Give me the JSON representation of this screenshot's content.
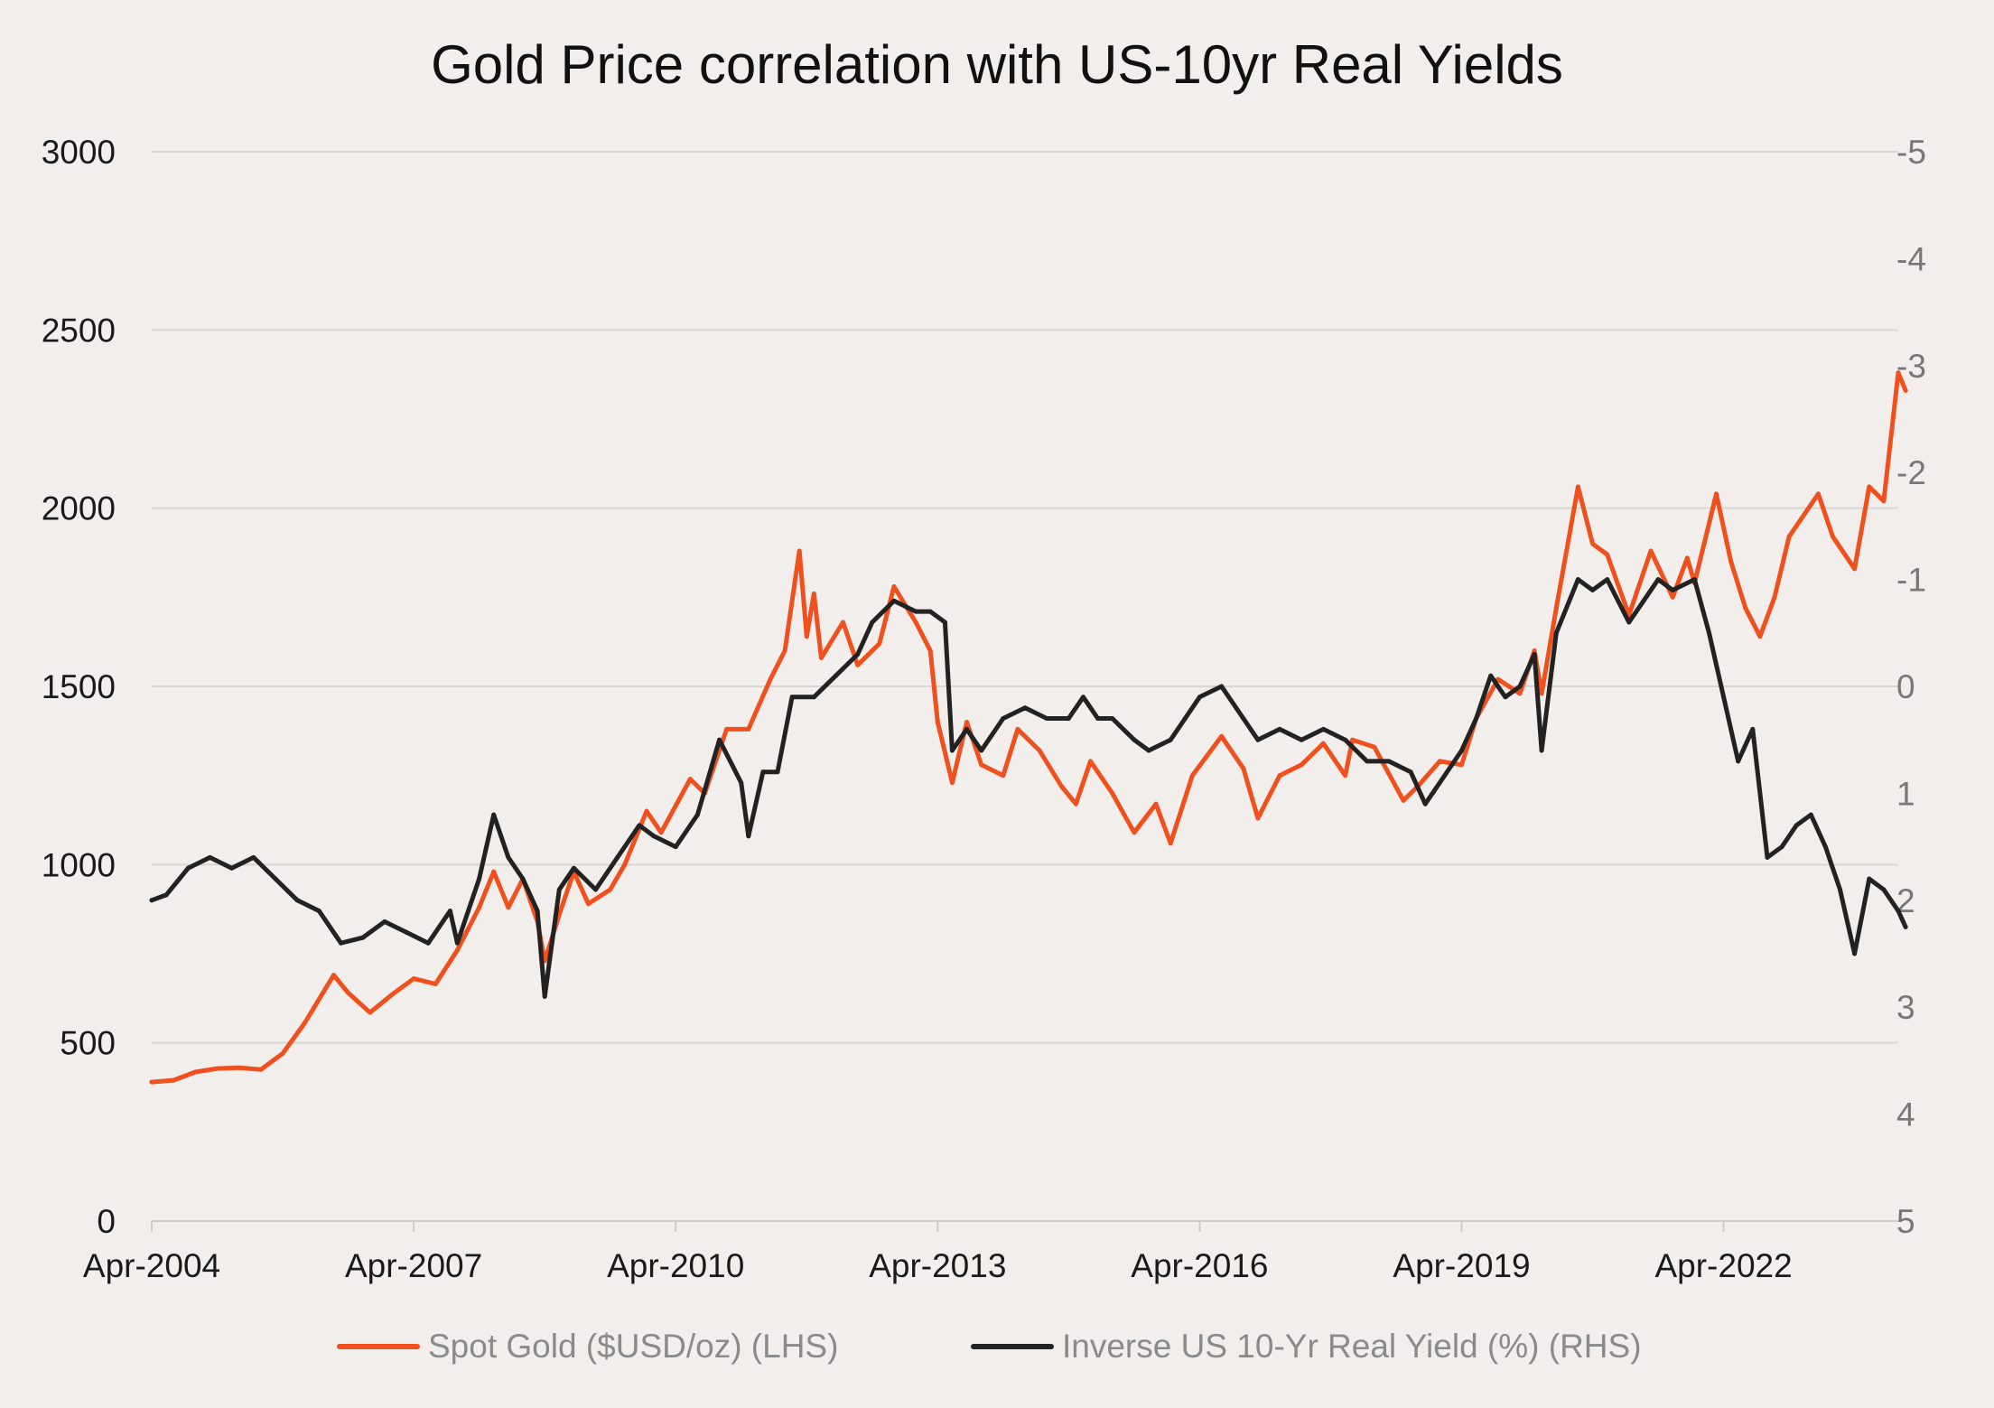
{
  "chart_data": {
    "type": "line",
    "title": "Gold Price correlation with US-10yr Real Yields",
    "xlabel": "",
    "ylabel_left": "",
    "ylabel_right": "",
    "x_range": [
      "2004-04",
      "2024-04"
    ],
    "x_ticks": [
      "Apr-2004",
      "Apr-2007",
      "Apr-2010",
      "Apr-2013",
      "Apr-2016",
      "Apr-2019",
      "Apr-2022"
    ],
    "y_left": {
      "range": [
        0,
        3000
      ],
      "ticks": [
        "0",
        "500",
        "1000",
        "1500",
        "2000",
        "2500",
        "3000"
      ]
    },
    "y_right": {
      "range": [
        5,
        -5
      ],
      "ticks": [
        "5",
        "4",
        "3",
        "2",
        "1",
        "0",
        "-1",
        "-2",
        "-3",
        "-4",
        "-5"
      ],
      "inverted": true
    },
    "grid": true,
    "legend_position": "bottom",
    "series": [
      {
        "name": "Spot Gold ($USD/oz) (LHS)",
        "axis": "left",
        "color": "#f0501e",
        "points": [
          [
            "2004-04",
            390
          ],
          [
            "2004-07",
            395
          ],
          [
            "2004-10",
            418
          ],
          [
            "2005-01",
            428
          ],
          [
            "2005-04",
            430
          ],
          [
            "2005-07",
            425
          ],
          [
            "2005-10",
            470
          ],
          [
            "2006-01",
            555
          ],
          [
            "2006-05",
            690
          ],
          [
            "2006-07",
            640
          ],
          [
            "2006-10",
            585
          ],
          [
            "2007-01",
            635
          ],
          [
            "2007-04",
            680
          ],
          [
            "2007-07",
            665
          ],
          [
            "2007-10",
            760
          ],
          [
            "2008-01",
            880
          ],
          [
            "2008-03",
            980
          ],
          [
            "2008-05",
            880
          ],
          [
            "2008-07",
            960
          ],
          [
            "2008-09",
            840
          ],
          [
            "2008-10",
            730
          ],
          [
            "2008-12",
            860
          ],
          [
            "2009-02",
            980
          ],
          [
            "2009-04",
            890
          ],
          [
            "2009-07",
            930
          ],
          [
            "2009-09",
            1000
          ],
          [
            "2009-12",
            1150
          ],
          [
            "2010-02",
            1090
          ],
          [
            "2010-06",
            1240
          ],
          [
            "2010-08",
            1200
          ],
          [
            "2010-11",
            1380
          ],
          [
            "2011-02",
            1380
          ],
          [
            "2011-05",
            1520
          ],
          [
            "2011-07",
            1600
          ],
          [
            "2011-09",
            1880
          ],
          [
            "2011-10",
            1640
          ],
          [
            "2011-11",
            1760
          ],
          [
            "2011-12",
            1580
          ],
          [
            "2012-03",
            1680
          ],
          [
            "2012-05",
            1560
          ],
          [
            "2012-08",
            1620
          ],
          [
            "2012-10",
            1780
          ],
          [
            "2013-01",
            1680
          ],
          [
            "2013-03",
            1600
          ],
          [
            "2013-04",
            1400
          ],
          [
            "2013-06",
            1230
          ],
          [
            "2013-08",
            1400
          ],
          [
            "2013-10",
            1280
          ],
          [
            "2014-01",
            1250
          ],
          [
            "2014-03",
            1380
          ],
          [
            "2014-06",
            1320
          ],
          [
            "2014-09",
            1220
          ],
          [
            "2014-11",
            1170
          ],
          [
            "2015-01",
            1290
          ],
          [
            "2015-04",
            1200
          ],
          [
            "2015-07",
            1090
          ],
          [
            "2015-10",
            1170
          ],
          [
            "2015-12",
            1060
          ],
          [
            "2016-03",
            1250
          ],
          [
            "2016-07",
            1360
          ],
          [
            "2016-10",
            1270
          ],
          [
            "2016-12",
            1130
          ],
          [
            "2017-03",
            1250
          ],
          [
            "2017-06",
            1280
          ],
          [
            "2017-09",
            1340
          ],
          [
            "2017-12",
            1250
          ],
          [
            "2018-01",
            1350
          ],
          [
            "2018-04",
            1330
          ],
          [
            "2018-08",
            1180
          ],
          [
            "2018-10",
            1220
          ],
          [
            "2019-01",
            1290
          ],
          [
            "2019-04",
            1280
          ],
          [
            "2019-06",
            1410
          ],
          [
            "2019-09",
            1520
          ],
          [
            "2019-12",
            1480
          ],
          [
            "2020-02",
            1600
          ],
          [
            "2020-03",
            1480
          ],
          [
            "2020-05",
            1720
          ],
          [
            "2020-08",
            2060
          ],
          [
            "2020-10",
            1900
          ],
          [
            "2020-12",
            1870
          ],
          [
            "2021-03",
            1700
          ],
          [
            "2021-06",
            1880
          ],
          [
            "2021-09",
            1750
          ],
          [
            "2021-11",
            1860
          ],
          [
            "2021-12",
            1790
          ],
          [
            "2022-03",
            2040
          ],
          [
            "2022-05",
            1850
          ],
          [
            "2022-07",
            1720
          ],
          [
            "2022-09",
            1640
          ],
          [
            "2022-11",
            1750
          ],
          [
            "2023-01",
            1920
          ],
          [
            "2023-05",
            2040
          ],
          [
            "2023-07",
            1920
          ],
          [
            "2023-10",
            1830
          ],
          [
            "2023-12",
            2060
          ],
          [
            "2024-02",
            2020
          ],
          [
            "2024-04",
            2380
          ],
          [
            "2024-05",
            2330
          ]
        ]
      },
      {
        "name": "Inverse US 10-Yr Real Yield (%) (RHS)",
        "axis": "right",
        "color": "#222222",
        "points": [
          [
            "2004-04",
            2.0
          ],
          [
            "2004-06",
            1.95
          ],
          [
            "2004-09",
            1.7
          ],
          [
            "2004-12",
            1.6
          ],
          [
            "2005-03",
            1.7
          ],
          [
            "2005-06",
            1.6
          ],
          [
            "2005-09",
            1.8
          ],
          [
            "2005-12",
            2.0
          ],
          [
            "2006-03",
            2.1
          ],
          [
            "2006-06",
            2.4
          ],
          [
            "2006-09",
            2.35
          ],
          [
            "2006-12",
            2.2
          ],
          [
            "2007-03",
            2.3
          ],
          [
            "2007-06",
            2.4
          ],
          [
            "2007-09",
            2.1
          ],
          [
            "2007-10",
            2.4
          ],
          [
            "2008-01",
            1.8
          ],
          [
            "2008-03",
            1.2
          ],
          [
            "2008-05",
            1.6
          ],
          [
            "2008-07",
            1.8
          ],
          [
            "2008-09",
            2.1
          ],
          [
            "2008-10",
            2.9
          ],
          [
            "2008-11",
            2.4
          ],
          [
            "2008-12",
            1.9
          ],
          [
            "2009-02",
            1.7
          ],
          [
            "2009-05",
            1.9
          ],
          [
            "2009-08",
            1.6
          ],
          [
            "2009-11",
            1.3
          ],
          [
            "2010-01",
            1.4
          ],
          [
            "2010-04",
            1.5
          ],
          [
            "2010-07",
            1.2
          ],
          [
            "2010-10",
            0.5
          ],
          [
            "2011-01",
            0.9
          ],
          [
            "2011-02",
            1.4
          ],
          [
            "2011-04",
            0.8
          ],
          [
            "2011-06",
            0.8
          ],
          [
            "2011-08",
            0.1
          ],
          [
            "2011-11",
            0.1
          ],
          [
            "2012-02",
            -0.1
          ],
          [
            "2012-05",
            -0.3
          ],
          [
            "2012-07",
            -0.6
          ],
          [
            "2012-10",
            -0.8
          ],
          [
            "2013-01",
            -0.7
          ],
          [
            "2013-03",
            -0.7
          ],
          [
            "2013-05",
            -0.6
          ],
          [
            "2013-06",
            0.6
          ],
          [
            "2013-08",
            0.4
          ],
          [
            "2013-10",
            0.6
          ],
          [
            "2014-01",
            0.3
          ],
          [
            "2014-04",
            0.2
          ],
          [
            "2014-07",
            0.3
          ],
          [
            "2014-10",
            0.3
          ],
          [
            "2014-12",
            0.1
          ],
          [
            "2015-02",
            0.3
          ],
          [
            "2015-04",
            0.3
          ],
          [
            "2015-07",
            0.5
          ],
          [
            "2015-09",
            0.6
          ],
          [
            "2015-12",
            0.5
          ],
          [
            "2016-02",
            0.3
          ],
          [
            "2016-04",
            0.1
          ],
          [
            "2016-07",
            0.0
          ],
          [
            "2016-10",
            0.3
          ],
          [
            "2016-12",
            0.5
          ],
          [
            "2017-03",
            0.4
          ],
          [
            "2017-06",
            0.5
          ],
          [
            "2017-09",
            0.4
          ],
          [
            "2017-12",
            0.5
          ],
          [
            "2018-03",
            0.7
          ],
          [
            "2018-06",
            0.7
          ],
          [
            "2018-09",
            0.8
          ],
          [
            "2018-11",
            1.1
          ],
          [
            "2019-01",
            0.9
          ],
          [
            "2019-04",
            0.6
          ],
          [
            "2019-06",
            0.3
          ],
          [
            "2019-08",
            -0.1
          ],
          [
            "2019-10",
            0.1
          ],
          [
            "2019-12",
            0.0
          ],
          [
            "2020-02",
            -0.3
          ],
          [
            "2020-03",
            0.6
          ],
          [
            "2020-05",
            -0.5
          ],
          [
            "2020-08",
            -1.0
          ],
          [
            "2020-10",
            -0.9
          ],
          [
            "2020-12",
            -1.0
          ],
          [
            "2021-03",
            -0.6
          ],
          [
            "2021-05",
            -0.8
          ],
          [
            "2021-07",
            -1.0
          ],
          [
            "2021-09",
            -0.9
          ],
          [
            "2021-12",
            -1.0
          ],
          [
            "2022-02",
            -0.5
          ],
          [
            "2022-04",
            0.1
          ],
          [
            "2022-06",
            0.7
          ],
          [
            "2022-08",
            0.4
          ],
          [
            "2022-10",
            1.6
          ],
          [
            "2022-12",
            1.5
          ],
          [
            "2023-02",
            1.3
          ],
          [
            "2023-04",
            1.2
          ],
          [
            "2023-06",
            1.5
          ],
          [
            "2023-08",
            1.9
          ],
          [
            "2023-10",
            2.5
          ],
          [
            "2023-12",
            1.8
          ],
          [
            "2024-02",
            1.9
          ],
          [
            "2024-04",
            2.1
          ],
          [
            "2024-05",
            2.25
          ]
        ]
      }
    ]
  }
}
